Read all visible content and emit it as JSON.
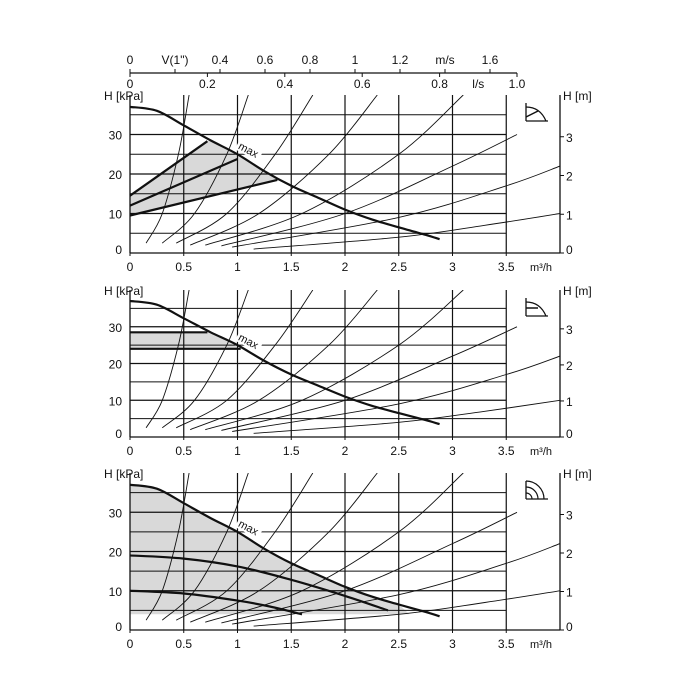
{
  "chart_data": {
    "type": "line",
    "top_axes": {
      "velocity": {
        "unit_label": "m/s",
        "series_label": "V(1\")",
        "ticks": [
          0,
          0.2,
          0.4,
          0.6,
          0.8,
          1,
          1.2,
          1.4,
          1.6
        ],
        "labels": [
          "0",
          "V(1\")",
          "0.4",
          "0.6",
          "0.8",
          "1",
          "1.2",
          "m/s",
          "1.6"
        ]
      },
      "flow_ls": {
        "unit_label": "l/s",
        "ticks": [
          0,
          0.2,
          0.4,
          0.6,
          0.8,
          0.9,
          1.0
        ],
        "labels": [
          "0",
          "0.2",
          "0.4",
          "0.6",
          "0.8",
          "l/s",
          "1.0"
        ]
      }
    },
    "xlabel": "m³/h",
    "ylabel_left": "H [kPa]",
    "ylabel_right": "H [m]",
    "xlim": [
      0,
      4
    ],
    "ylim": [
      0,
      40
    ],
    "x_ticks": [
      "0",
      "0.5",
      "1",
      "1.5",
      "2",
      "2.5",
      "3",
      "3.5"
    ],
    "y_ticks_left": [
      "0",
      "10",
      "20",
      "30"
    ],
    "y_ticks_right": [
      "0",
      "1",
      "2",
      "3"
    ],
    "grid": true,
    "max_label": "max",
    "max_curve": [
      [
        0,
        37
      ],
      [
        0.25,
        36
      ],
      [
        0.5,
        32.3
      ],
      [
        0.75,
        28.5
      ],
      [
        1,
        25
      ],
      [
        1.25,
        20.7
      ],
      [
        1.5,
        17
      ],
      [
        1.75,
        14
      ],
      [
        2,
        11
      ],
      [
        2.25,
        8.5
      ],
      [
        2.5,
        6.5
      ],
      [
        2.75,
        4.6
      ],
      [
        2.88,
        3.5
      ]
    ],
    "system_curves": [
      [
        [
          0.15,
          2.5
        ],
        [
          0.3,
          10
        ],
        [
          0.45,
          25
        ],
        [
          0.55,
          40
        ]
      ],
      [
        [
          0.3,
          2.5
        ],
        [
          0.6,
          10
        ],
        [
          0.9,
          25
        ],
        [
          1.1,
          40
        ]
      ],
      [
        [
          0.43,
          2.5
        ],
        [
          0.9,
          10
        ],
        [
          1.35,
          25
        ],
        [
          1.7,
          40
        ]
      ],
      [
        [
          0.56,
          2
        ],
        [
          1.2,
          10
        ],
        [
          1.85,
          25
        ],
        [
          2.3,
          40
        ]
      ],
      [
        [
          0.7,
          2
        ],
        [
          1.6,
          10
        ],
        [
          2.5,
          25
        ],
        [
          3.1,
          40
        ]
      ],
      [
        [
          0.85,
          1.8
        ],
        [
          2,
          10
        ],
        [
          3,
          22
        ],
        [
          3.6,
          30
        ]
      ],
      [
        [
          0.95,
          1.5
        ],
        [
          2.5,
          9
        ],
        [
          3.5,
          17
        ],
        [
          4,
          22
        ]
      ],
      [
        [
          1.15,
          1
        ],
        [
          2.5,
          4
        ],
        [
          3.3,
          7
        ],
        [
          4,
          10
        ]
      ]
    ],
    "panels": [
      {
        "mode": "proportional-pressure",
        "icon": "proportional-pressure-icon",
        "curves": [
          [
            [
              0,
              14.5
            ],
            [
              0.72,
              28.3
            ]
          ],
          [
            [
              0,
              12
            ],
            [
              1.0,
              23.8
            ]
          ],
          [
            [
              0,
              9.5
            ],
            [
              1.37,
              18.5
            ]
          ]
        ],
        "shaded": [
          [
            0,
            9.5
          ],
          [
            1.37,
            18.5
          ],
          [
            1.25,
            20.7
          ],
          [
            1,
            25
          ],
          [
            0.75,
            28.5
          ],
          [
            0.72,
            28.3
          ],
          [
            0,
            14.5
          ]
        ]
      },
      {
        "mode": "constant-pressure",
        "icon": "constant-pressure-icon",
        "curves": [
          [
            [
              0,
              28.5
            ],
            [
              0.72,
              28.5
            ]
          ],
          [
            [
              0,
              24
            ],
            [
              1.03,
              24
            ]
          ]
        ],
        "shaded": [
          [
            0,
            24
          ],
          [
            1.03,
            24
          ],
          [
            0.75,
            28.5
          ],
          [
            0,
            28.5
          ]
        ]
      },
      {
        "mode": "fixed-speed",
        "icon": "speed-curves-icon",
        "curves": [
          [
            [
              0,
              19
            ],
            [
              0.5,
              18.2
            ],
            [
              1,
              16.2
            ],
            [
              1.5,
              12.8
            ],
            [
              2,
              8.7
            ],
            [
              2.4,
              5
            ]
          ],
          [
            [
              0,
              10
            ],
            [
              0.5,
              9.3
            ],
            [
              1,
              7.5
            ],
            [
              1.3,
              6
            ],
            [
              1.6,
              4
            ]
          ]
        ],
        "shaded": [
          [
            0,
            4
          ],
          [
            2.6,
            4
          ],
          [
            2.5,
            6.5
          ],
          [
            2.25,
            8.5
          ],
          [
            2,
            11
          ],
          [
            1.75,
            14
          ],
          [
            1.5,
            17
          ],
          [
            1.25,
            20.7
          ],
          [
            1,
            25
          ],
          [
            0.75,
            28.5
          ],
          [
            0.5,
            32.3
          ],
          [
            0.25,
            36
          ],
          [
            0,
            37
          ]
        ]
      }
    ]
  },
  "colors": {
    "line": "#111111",
    "shade": "#d9d9d9",
    "grid": "#111111"
  }
}
